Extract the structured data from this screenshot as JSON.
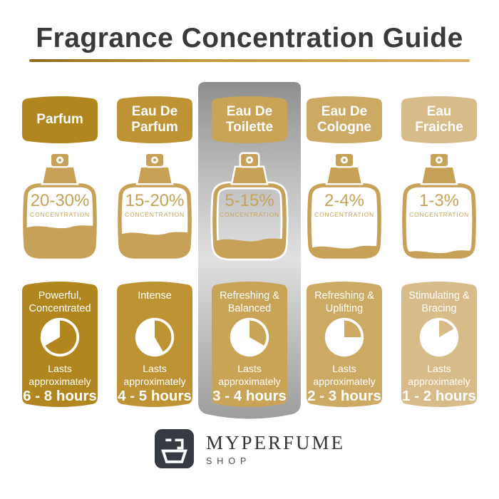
{
  "title": "Fragrance Concentration Guide",
  "palette": {
    "page_background": "#ffffff",
    "title_color": "#3a3a3c",
    "underline_gradient": [
      "#8f6d1d",
      "#c39a3e",
      "#d9b267"
    ],
    "bottle_gold": "#c8a158",
    "highlight_strip_silver": [
      "#8d8d8d",
      "#e0e0e0",
      "#9c9c9c"
    ],
    "logo_background": "#363a43",
    "text_on_gold": "#ffffff"
  },
  "concentration_label": "CONCENTRATION",
  "columns": [
    {
      "name": "Parfum",
      "concentration": "20-30%",
      "concentration_label": "CONCENTRATION",
      "fill_level": 0.45,
      "color": "#b1861f",
      "bottle_color": "#c8a158",
      "description": "Powerful,\nConcentrated",
      "pie_hours": 8,
      "lasts": "Lasts\napproximately",
      "duration": "6 - 8 hours",
      "highlighted": false
    },
    {
      "name": "Eau De\nParfum",
      "concentration": "15-20%",
      "concentration_label": "CONCENTRATION",
      "fill_level": 0.35,
      "color": "#bd9334",
      "bottle_color": "#c8a158",
      "description": "Intense",
      "pie_hours": 5,
      "lasts": "Lasts\napproximately",
      "duration": "4 - 5 hours",
      "highlighted": false
    },
    {
      "name": "Eau De\nToilette",
      "concentration": "5-15%",
      "concentration_label": "CONCENTRATION",
      "fill_level": 0.25,
      "color": "#c9a356",
      "bottle_color": "#c8a158",
      "description": "Refreshing &\nBalanced",
      "pie_hours": 4,
      "lasts": "Lasts\napproximately",
      "duration": "3 - 4 hours",
      "highlighted": true
    },
    {
      "name": "Eau De\nCologne",
      "concentration": "2-4%",
      "concentration_label": "CONCENTRATION",
      "fill_level": 0.14,
      "color": "#cdaa64",
      "bottle_color": "#c8a158",
      "description": "Refreshing &\nUplifting",
      "pie_hours": 3,
      "lasts": "Lasts\napproximately",
      "duration": "2 - 3 hours",
      "highlighted": false
    },
    {
      "name": "Eau\nFraiche",
      "concentration": "1-3%",
      "concentration_label": "CONCENTRATION",
      "fill_level": 0.07,
      "color": "#d7bb88",
      "bottle_color": "#c8a158",
      "description": "Stimulating &\nBracing",
      "pie_hours": 2,
      "lasts": "Lasts\napproximately",
      "duration": "1 - 2 hours",
      "highlighted": false
    }
  ],
  "footer": {
    "brand": "MYPERFUME",
    "sub": "SHOP",
    "logo_icon": "perfume-bottle-icon"
  }
}
